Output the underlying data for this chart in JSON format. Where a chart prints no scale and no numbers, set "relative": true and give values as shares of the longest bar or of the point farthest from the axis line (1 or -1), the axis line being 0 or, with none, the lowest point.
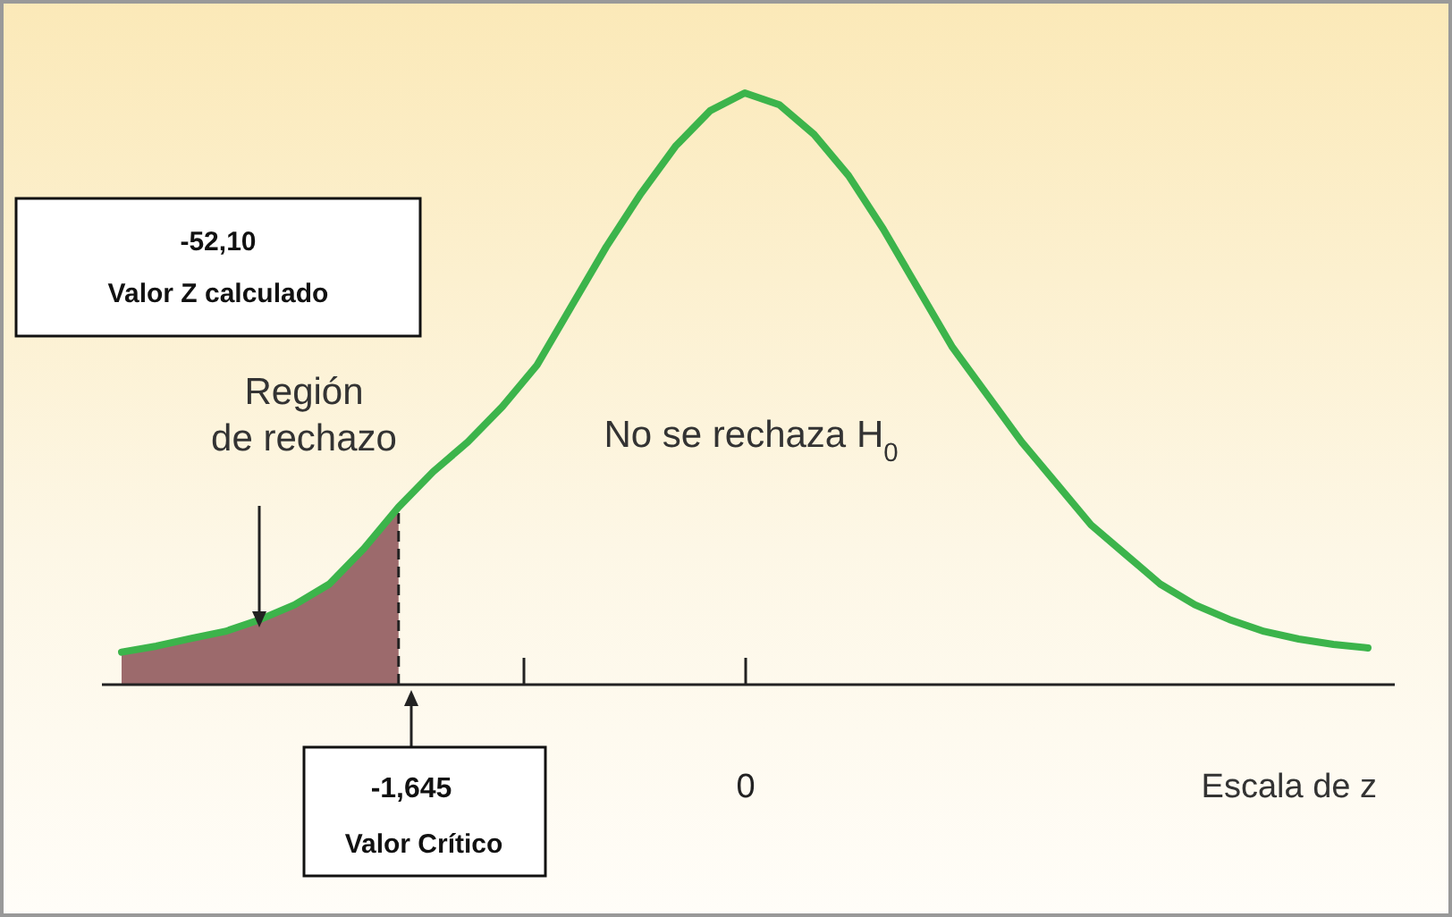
{
  "chart_data": {
    "type": "line",
    "relative": true,
    "xlabel": "Escala de z",
    "categories": [
      null,
      null,
      null,
      null,
      null,
      null,
      null,
      null,
      null,
      null,
      null,
      null,
      null,
      null,
      null,
      null,
      null,
      null,
      null,
      null,
      null,
      null,
      null,
      null,
      null,
      null,
      null,
      null,
      null,
      null,
      null,
      null,
      null,
      null,
      null,
      null,
      null
    ],
    "series": [
      {
        "type": "area",
        "color": "#9c6a6c",
        "line_style": "dashed",
        "values": [
          0.055,
          0.065,
          0.078,
          0.09,
          0.11,
          0.135,
          0.17,
          0.23,
          0.3,
          null,
          null,
          null,
          null,
          null,
          null,
          null,
          null,
          null,
          null,
          null,
          null,
          null,
          null,
          null,
          null,
          null,
          null,
          null,
          null,
          null,
          null,
          null,
          null,
          null,
          null,
          null,
          null
        ]
      },
      {
        "color": "#3cb44b",
        "values": [
          0.055,
          0.065,
          0.078,
          0.09,
          0.11,
          0.135,
          0.17,
          0.23,
          0.3,
          0.36,
          0.41,
          0.47,
          0.54,
          0.64,
          0.74,
          0.83,
          0.91,
          0.97,
          1,
          0.98,
          0.93,
          0.86,
          0.77,
          0.67,
          0.57,
          0.49,
          0.41,
          0.34,
          0.27,
          0.22,
          0.17,
          0.135,
          0.11,
          0.09,
          0.077,
          0.068,
          0.062
        ]
      }
    ],
    "annotations": [
      "-1,645",
      "Valor Crítico",
      "0",
      "-52,10\nValor Z calculado",
      "Región\nde rechazo",
      "No se rechaza H$_{0}$"
    ]
  }
}
